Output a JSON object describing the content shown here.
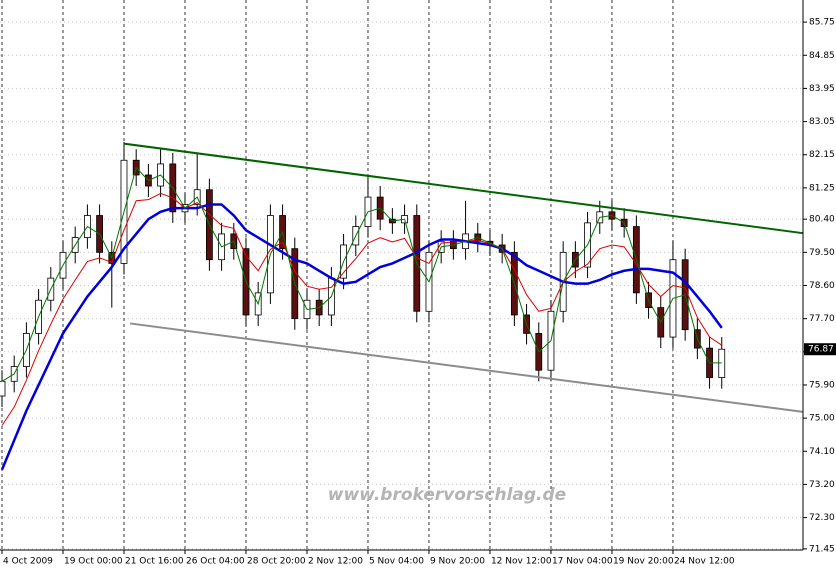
{
  "chart_data": {
    "type": "candlestick",
    "watermark": "www.brokervorschlag.de",
    "categories": [
      "4 Oct 2009",
      null,
      null,
      null,
      null,
      "19 Oct 00:00",
      null,
      null,
      null,
      null,
      "21 Oct 16:00",
      null,
      null,
      null,
      null,
      "26 Oct 04:00",
      null,
      null,
      null,
      null,
      "28 Oct 20:00",
      null,
      null,
      null,
      null,
      "2 Nov 12:00",
      null,
      null,
      null,
      null,
      "5 Nov 04:00",
      null,
      null,
      null,
      null,
      "9 Nov 20:00",
      null,
      null,
      null,
      null,
      "12 Nov 12:00",
      null,
      null,
      null,
      null,
      "17 Nov 04:00",
      null,
      null,
      null,
      null,
      "19 Nov 20:00",
      null,
      null,
      null,
      null,
      "24 Nov 12:00",
      null,
      null,
      null,
      null
    ],
    "open": [
      75.6,
      76.0,
      76.4,
      77.3,
      78.2,
      78.8,
      79.5,
      79.9,
      80.5,
      79.5,
      79.2,
      82.0,
      81.6,
      81.3,
      81.9,
      80.6,
      80.8,
      81.2,
      79.3,
      80.0,
      79.6,
      77.8,
      78.4,
      80.5,
      79.6,
      77.7,
      78.2,
      77.8,
      78.8,
      79.7,
      80.2,
      81.0,
      80.4,
      80.3,
      80.5,
      77.9,
      79.5,
      79.8,
      79.6,
      80.0,
      79.8,
      79.7,
      79.5,
      77.8,
      77.3,
      76.3,
      77.9,
      79.5,
      79.1,
      80.3,
      80.6,
      80.4,
      80.2,
      78.4,
      78.0,
      77.2,
      79.3,
      77.4,
      76.9,
      76.1
    ],
    "high": [
      76.3,
      76.7,
      77.6,
      78.5,
      79.1,
      79.8,
      80.2,
      80.8,
      80.8,
      79.8,
      82.5,
      82.3,
      81.9,
      82.3,
      82.2,
      81.1,
      82.2,
      81.5,
      80.3,
      80.3,
      79.9,
      78.7,
      80.8,
      80.8,
      79.9,
      78.5,
      78.5,
      79.1,
      80.0,
      80.5,
      81.6,
      81.3,
      80.7,
      80.8,
      80.8,
      79.8,
      80.1,
      80.1,
      80.9,
      80.3,
      80.1,
      80.0,
      79.8,
      78.1,
      77.6,
      78.2,
      79.8,
      79.8,
      80.6,
      80.9,
      80.9,
      80.7,
      80.5,
      78.7,
      78.3,
      79.8,
      79.6,
      77.7,
      77.2,
      77.2
    ],
    "low": [
      75.3,
      75.7,
      76.1,
      77.0,
      77.9,
      78.5,
      79.2,
      79.6,
      79.2,
      78.0,
      78.9,
      81.3,
      81.0,
      81.0,
      80.3,
      80.3,
      80.5,
      79.0,
      79.0,
      79.3,
      77.5,
      77.5,
      78.1,
      79.3,
      77.4,
      77.4,
      77.5,
      77.5,
      78.5,
      79.4,
      79.9,
      80.1,
      80.0,
      80.0,
      77.6,
      77.6,
      79.2,
      79.3,
      79.3,
      79.5,
      79.4,
      79.2,
      77.5,
      77.0,
      76.0,
      76.0,
      77.6,
      78.8,
      78.8,
      80.0,
      80.1,
      79.9,
      78.1,
      77.7,
      76.9,
      76.9,
      77.1,
      76.6,
      75.8,
      75.8
    ],
    "close": [
      76.0,
      76.4,
      77.3,
      78.2,
      78.8,
      79.5,
      79.9,
      80.5,
      79.5,
      79.2,
      82.0,
      81.6,
      81.3,
      81.9,
      80.6,
      80.8,
      81.2,
      79.3,
      80.0,
      79.6,
      77.8,
      78.4,
      80.5,
      79.6,
      77.7,
      78.2,
      77.8,
      78.8,
      79.7,
      80.2,
      81.0,
      80.4,
      80.3,
      80.5,
      77.9,
      79.5,
      79.8,
      79.6,
      80.0,
      79.8,
      79.7,
      79.5,
      77.8,
      77.3,
      76.3,
      77.9,
      79.5,
      79.1,
      80.3,
      80.6,
      80.4,
      80.2,
      78.4,
      78.0,
      77.2,
      79.3,
      77.4,
      76.9,
      76.1,
      76.87
    ],
    "series": [
      {
        "color": "#0000dd",
        "width": 2.5,
        "values": [
          73.6,
          74.4,
          75.2,
          75.9,
          76.6,
          77.3,
          77.8,
          78.3,
          78.7,
          79.1,
          79.6,
          80.0,
          80.4,
          80.6,
          80.7,
          80.7,
          80.7,
          80.8,
          80.8,
          80.5,
          80.1,
          79.9,
          79.7,
          79.5,
          79.3,
          79.2,
          79.0,
          78.8,
          78.65,
          78.7,
          78.9,
          79.1,
          79.2,
          79.35,
          79.5,
          79.7,
          79.85,
          79.85,
          79.8,
          79.75,
          79.7,
          79.6,
          79.4,
          79.15,
          79.0,
          78.85,
          78.7,
          78.65,
          78.65,
          78.75,
          78.9,
          79.0,
          79.05,
          79.05,
          79.0,
          78.95,
          78.7,
          78.3,
          77.9,
          77.45
        ]
      },
      {
        "color": "#dd0000",
        "width": 1,
        "values": [
          74.8,
          75.3,
          76.03,
          76.83,
          77.55,
          78.23,
          78.75,
          79.25,
          79.35,
          79.23,
          80.1,
          80.9,
          80.93,
          81.1,
          80.98,
          80.7,
          80.85,
          80.53,
          80.23,
          80.15,
          79.4,
          79.0,
          79.58,
          79.78,
          78.98,
          78.58,
          78.5,
          78.55,
          78.95,
          79.33,
          79.75,
          79.9,
          79.78,
          79.88,
          79.35,
          79.2,
          79.75,
          79.78,
          79.8,
          79.83,
          79.73,
          79.6,
          79.03,
          78.35,
          77.9,
          77.98,
          78.7,
          78.98,
          79.18,
          79.6,
          79.7,
          79.65,
          79.18,
          78.63,
          78.3,
          78.6,
          78.53,
          77.73,
          77.2,
          76.98
        ]
      },
      {
        "color": "#007700",
        "width": 1,
        "values": [
          76.0,
          76.2,
          76.85,
          77.75,
          78.5,
          79.15,
          79.7,
          80.2,
          80.0,
          79.35,
          80.6,
          81.8,
          81.45,
          81.6,
          81.25,
          80.7,
          81.0,
          80.25,
          79.65,
          79.8,
          78.7,
          78.1,
          79.45,
          80.05,
          78.65,
          77.95,
          78.0,
          78.3,
          79.25,
          79.95,
          80.6,
          80.7,
          80.35,
          80.4,
          79.2,
          78.7,
          79.65,
          79.7,
          79.8,
          79.9,
          79.75,
          79.6,
          78.65,
          77.55,
          76.8,
          77.1,
          78.7,
          79.3,
          79.7,
          80.45,
          80.5,
          80.3,
          79.3,
          78.2,
          77.6,
          78.25,
          78.35,
          77.15,
          76.5,
          76.5
        ]
      }
    ],
    "lines": [
      {
        "color": "#006400",
        "x": [
          10,
          65.66
        ],
        "values": [
          82.45,
          80.02
        ]
      },
      {
        "color": "#8c8c8c",
        "x": [
          10.5,
          65.66
        ],
        "values": [
          77.57,
          75.17
        ]
      }
    ],
    "last_price": 76.87,
    "xlim": [
      -0.164,
      65.66
    ],
    "ylim": [
      71.42,
      86.35
    ],
    "yticks": [
      {
        "value": 85.75,
        "label": "85.75"
      },
      {
        "value": 84.85,
        "label": "84.85"
      },
      {
        "value": 83.95,
        "label": "83.95"
      },
      {
        "value": 83.05,
        "label": "83.05"
      },
      {
        "value": 82.15,
        "label": "82.15"
      },
      {
        "value": 81.25,
        "label": "81.25"
      },
      {
        "value": 80.4,
        "label": "80.40"
      },
      {
        "value": 79.5,
        "label": "79.50"
      },
      {
        "value": 78.6,
        "label": "78.60"
      },
      {
        "value": 77.7,
        "label": "77.70"
      },
      {
        "value": 76.8,
        "label": "76.80"
      },
      {
        "value": 75.9,
        "label": "75.90"
      },
      {
        "value": 75.0,
        "label": "75.00"
      },
      {
        "value": 74.1,
        "label": "74.10"
      },
      {
        "value": 73.2,
        "label": "73.20"
      },
      {
        "value": 72.3,
        "label": "72.30"
      },
      {
        "value": 71.45,
        "label": "71.45"
      }
    ],
    "grid": true
  }
}
